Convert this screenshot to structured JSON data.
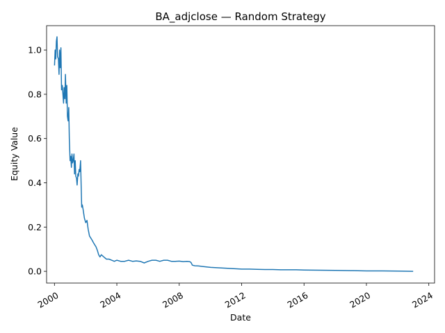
{
  "chart_data": {
    "type": "line",
    "title": "BA_adjclose — Random Strategy",
    "xlabel": "Date",
    "ylabel": "Equity Value",
    "xlim": [
      "1999-07-01",
      "2024-05-15"
    ],
    "ylim": [
      -0.053,
      1.11
    ],
    "grid": false,
    "legend": "none",
    "line_color": "#1f77b4",
    "x_ticks": [
      "2000",
      "2004",
      "2008",
      "2012",
      "2016",
      "2020",
      "2024"
    ],
    "y_ticks": [
      "0.0",
      "0.2",
      "0.4",
      "0.6",
      "0.8",
      "1.0"
    ],
    "y_tick_values": [
      0.0,
      0.2,
      0.4,
      0.6,
      0.8,
      1.0
    ],
    "series": [
      {
        "x": [
          "2000-01-03",
          "2000-01-18",
          "2000-02-01",
          "2000-02-15",
          "2000-03-01",
          "2000-03-15",
          "2000-04-03",
          "2000-04-17",
          "2000-05-01",
          "2000-05-15",
          "2000-06-01",
          "2000-06-15",
          "2000-07-03",
          "2000-07-17",
          "2000-08-01",
          "2000-08-15",
          "2000-09-01",
          "2000-09-15",
          "2000-10-02",
          "2000-10-16",
          "2000-11-01",
          "2000-11-15",
          "2000-12-01",
          "2000-12-15",
          "2001-01-02",
          "2001-01-16",
          "2001-02-01",
          "2001-02-15",
          "2001-03-01",
          "2001-03-15",
          "2001-04-02",
          "2001-04-16",
          "2001-05-01",
          "2001-05-15",
          "2001-06-01",
          "2001-06-15",
          "2001-07-02",
          "2001-07-16",
          "2001-08-01",
          "2001-08-15",
          "2001-09-04",
          "2001-09-17",
          "2001-10-01",
          "2001-10-15",
          "2001-11-01",
          "2001-12-03",
          "2002-01-02",
          "2002-02-01",
          "2002-03-01",
          "2002-04-01",
          "2002-05-01",
          "2002-06-03",
          "2002-07-01",
          "2002-08-01",
          "2002-09-03",
          "2002-10-01",
          "2002-11-01",
          "2002-12-02",
          "2003-01-02",
          "2003-03-03",
          "2003-05-01",
          "2003-07-01",
          "2003-09-02",
          "2003-11-03",
          "2004-01-02",
          "2004-04-01",
          "2004-07-01",
          "2004-10-01",
          "2005-01-03",
          "2005-04-01",
          "2005-07-01",
          "2005-10-03",
          "2006-01-03",
          "2006-04-03",
          "2006-07-03",
          "2006-10-02",
          "2007-01-03",
          "2007-04-02",
          "2007-07-02",
          "2007-10-01",
          "2008-01-02",
          "2008-04-01",
          "2008-07-01",
          "2008-09-02",
          "2008-10-01",
          "2008-10-15",
          "2008-11-03",
          "2009-01-02",
          "2009-04-01",
          "2009-07-01",
          "2009-10-01",
          "2010-01-04",
          "2010-07-01",
          "2011-01-03",
          "2011-07-01",
          "2012-01-03",
          "2012-07-02",
          "2013-01-02",
          "2013-07-01",
          "2014-01-02",
          "2014-07-01",
          "2015-01-02",
          "2015-07-01",
          "2016-01-04",
          "2017-01-03",
          "2018-01-02",
          "2019-01-02",
          "2020-01-02",
          "2021-01-04",
          "2022-01-03",
          "2022-12-30"
        ],
        "y": [
          0.93,
          1.0,
          0.96,
          1.04,
          1.06,
          0.97,
          0.96,
          0.89,
          1.0,
          0.92,
          1.01,
          0.82,
          0.84,
          0.8,
          0.76,
          0.83,
          0.78,
          0.89,
          0.76,
          0.84,
          0.7,
          0.68,
          0.74,
          0.6,
          0.5,
          0.52,
          0.47,
          0.53,
          0.49,
          0.5,
          0.53,
          0.44,
          0.5,
          0.43,
          0.42,
          0.39,
          0.44,
          0.43,
          0.46,
          0.45,
          0.5,
          0.39,
          0.29,
          0.3,
          0.28,
          0.24,
          0.22,
          0.23,
          0.19,
          0.16,
          0.15,
          0.14,
          0.13,
          0.12,
          0.11,
          0.095,
          0.075,
          0.065,
          0.075,
          0.065,
          0.055,
          0.055,
          0.05,
          0.045,
          0.05,
          0.045,
          0.045,
          0.05,
          0.045,
          0.047,
          0.045,
          0.038,
          0.045,
          0.05,
          0.05,
          0.045,
          0.05,
          0.05,
          0.045,
          0.045,
          0.046,
          0.044,
          0.045,
          0.044,
          0.04,
          0.035,
          0.028,
          0.025,
          0.024,
          0.022,
          0.02,
          0.018,
          0.016,
          0.014,
          0.012,
          0.01,
          0.01,
          0.009,
          0.008,
          0.008,
          0.007,
          0.007,
          0.007,
          0.006,
          0.005,
          0.004,
          0.003,
          0.002,
          0.002,
          0.001,
          0.0
        ]
      }
    ]
  }
}
